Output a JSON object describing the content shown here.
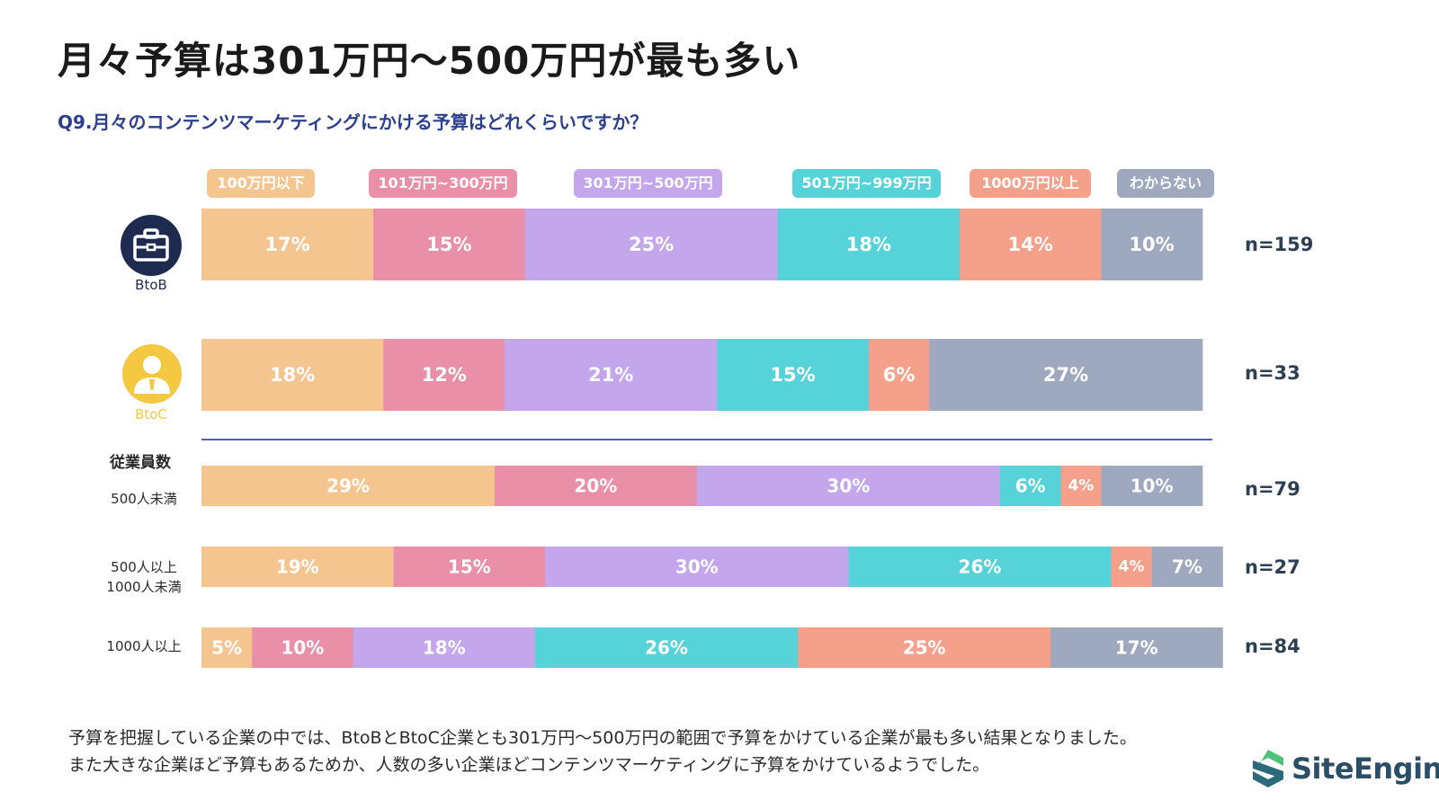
{
  "title": "月々予算は301万円〜500万円が最も多い",
  "question": "Q9.月々のコンテンツマーケティングにかける予算はどれくらいですか？",
  "group_title": "従業員数",
  "icons": {
    "btob": {
      "icon": "briefcase-icon",
      "caption": "BtoB",
      "color": "#1e2a4f"
    },
    "btoc": {
      "icon": "person-icon",
      "caption": "BtoC",
      "color": "#f5c842"
    }
  },
  "rows": [
    {
      "label": "BtoB",
      "n": "n=159"
    },
    {
      "label": "BtoC",
      "n": "n=33"
    },
    {
      "label": "500人未満",
      "n": "n=79"
    },
    {
      "label_line1": "500人以上",
      "label_line2": "1000人未満",
      "n": "n=27"
    },
    {
      "label": "1000人以上",
      "n": "n=84"
    }
  ],
  "colors": [
    "#f5c58f",
    "#e98fa8",
    "#c3a6ec",
    "#55d3d8",
    "#f5a08a",
    "#9ea9c0"
  ],
  "chart_data": {
    "type": "bar",
    "orientation": "horizontal",
    "stacked": "100%",
    "categories": [
      "BtoB",
      "BtoC",
      "500人未満",
      "500人以上 1000人未満",
      "1000人以上"
    ],
    "series": [
      {
        "name": "100万円以下",
        "values": [
          17,
          18,
          29,
          19,
          5
        ],
        "labels": [
          "17%",
          "18%",
          "29%",
          "19%",
          "5%"
        ]
      },
      {
        "name": "101万円~300万円",
        "values": [
          15,
          12,
          20,
          15,
          10
        ],
        "labels": [
          "15%",
          "12%",
          "20%",
          "15%",
          "10%"
        ]
      },
      {
        "name": "301万円~500万円",
        "values": [
          25,
          21,
          30,
          30,
          18
        ],
        "labels": [
          "25%",
          "21%",
          "30%",
          "30%",
          "18%"
        ]
      },
      {
        "name": "501万円~999万円",
        "values": [
          18,
          15,
          6,
          26,
          26
        ],
        "labels": [
          "18%",
          "15%",
          "6%",
          "26%",
          "26%"
        ]
      },
      {
        "name": "1000万円以上",
        "values": [
          14,
          6,
          4,
          4,
          25
        ],
        "labels": [
          "14%",
          "6%",
          "4%",
          "4%",
          "25%"
        ]
      },
      {
        "name": "わからない",
        "values": [
          10,
          27,
          10,
          7,
          17
        ],
        "labels": [
          "10%",
          "27%",
          "10%",
          "7%",
          "17%"
        ]
      }
    ],
    "legend_position": "top"
  },
  "footer": {
    "line1": "予算を把握している企業の中では、BtoBとBtoC企業とも301万円〜500万円の範囲で予算をかけている企業が最も多い結果となりました。",
    "line2": "また大きな企業ほど予算もあるためか、人数の多い企業ほどコンテンツマーケティングに予算をかけているようでした。"
  },
  "logo": {
    "text": "SiteEngine",
    "icon": "siteengine-logo-icon",
    "color": "#2a4f66",
    "accent": "#4fc27a"
  }
}
